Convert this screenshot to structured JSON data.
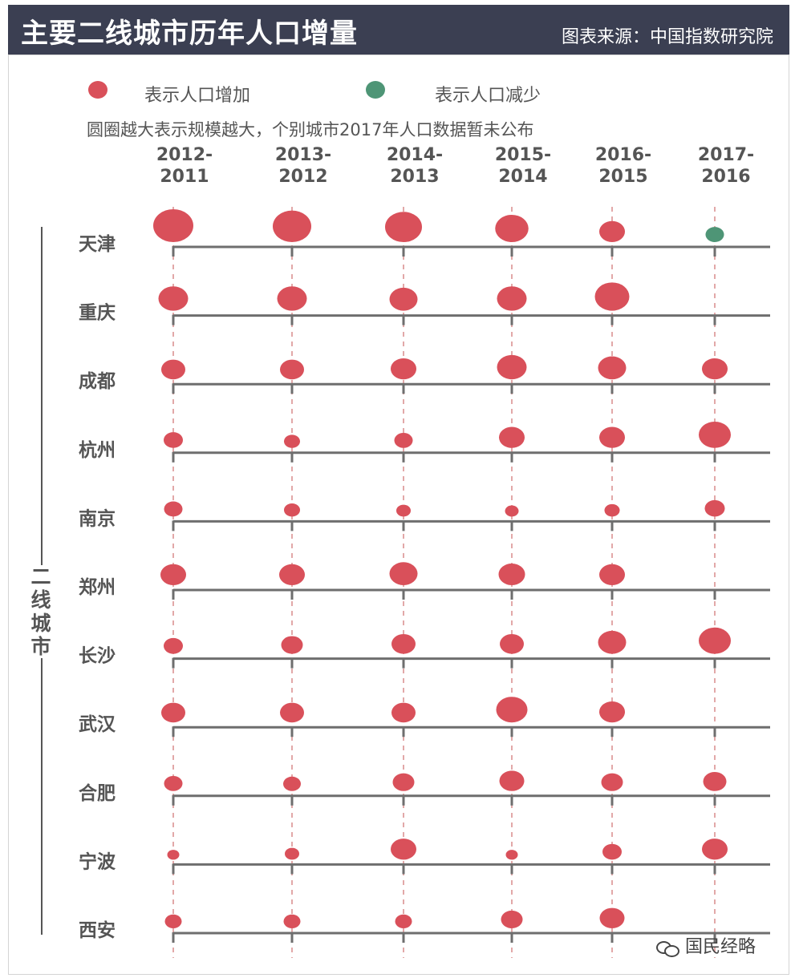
{
  "title": "主要二线城市历年人口增量",
  "source": "图表来源：中国指数研究院",
  "legend": {
    "increase_label": "表示人口增加",
    "decrease_label": "表示人口减少",
    "increase_color": "#d9505a",
    "decrease_color": "#4e9576"
  },
  "note": "圆圈越大表示规模越大，个别城市2017年人口数据暂未公布",
  "group_label": "二线城市",
  "watermark": "国民经略",
  "chart_data": {
    "type": "bubble-matrix",
    "periods": [
      {
        "line1": "2012-",
        "line2": "2011"
      },
      {
        "line1": "2013-",
        "line2": "2012"
      },
      {
        "line1": "2014-",
        "line2": "2013"
      },
      {
        "line1": "2015-",
        "line2": "2014"
      },
      {
        "line1": "2016-",
        "line2": "2015"
      },
      {
        "line1": "2017-",
        "line2": "2016"
      }
    ],
    "size_unit": "relative bubble size (largest = 1.0)",
    "cities": [
      {
        "name": "天津",
        "size": [
          1.0,
          0.96,
          0.92,
          0.83,
          0.64,
          0.46
        ],
        "direction": [
          "increase",
          "increase",
          "increase",
          "increase",
          "increase",
          "decrease"
        ]
      },
      {
        "name": "重庆",
        "size": [
          0.74,
          0.74,
          0.7,
          0.74,
          0.86,
          null
        ],
        "direction": [
          "increase",
          "increase",
          "increase",
          "increase",
          "increase",
          null
        ]
      },
      {
        "name": "成都",
        "size": [
          0.6,
          0.6,
          0.64,
          0.74,
          0.7,
          0.64
        ],
        "direction": [
          "increase",
          "increase",
          "increase",
          "increase",
          "increase",
          "increase"
        ]
      },
      {
        "name": "杭州",
        "size": [
          0.48,
          0.4,
          0.46,
          0.64,
          0.64,
          0.8
        ],
        "direction": [
          "increase",
          "increase",
          "increase",
          "increase",
          "increase",
          "increase"
        ]
      },
      {
        "name": "南京",
        "size": [
          0.46,
          0.4,
          0.36,
          0.34,
          0.38,
          0.5
        ],
        "direction": [
          "increase",
          "increase",
          "increase",
          "increase",
          "increase",
          "increase"
        ]
      },
      {
        "name": "郑州",
        "size": [
          0.64,
          0.64,
          0.7,
          0.66,
          0.64,
          null
        ],
        "direction": [
          "increase",
          "increase",
          "increase",
          "increase",
          "increase",
          null
        ]
      },
      {
        "name": "长沙",
        "size": [
          0.48,
          0.54,
          0.6,
          0.6,
          0.7,
          0.8
        ],
        "direction": [
          "increase",
          "increase",
          "increase",
          "increase",
          "increase",
          "increase"
        ]
      },
      {
        "name": "武汉",
        "size": [
          0.6,
          0.6,
          0.6,
          0.78,
          0.64,
          null
        ],
        "direction": [
          "increase",
          "increase",
          "increase",
          "increase",
          "increase",
          null
        ]
      },
      {
        "name": "合肥",
        "size": [
          0.46,
          0.44,
          0.54,
          0.62,
          0.54,
          0.58
        ],
        "direction": [
          "increase",
          "increase",
          "increase",
          "increase",
          "increase",
          "increase"
        ]
      },
      {
        "name": "宁波",
        "size": [
          0.3,
          0.36,
          0.64,
          0.3,
          0.48,
          0.64
        ],
        "direction": [
          "increase",
          "increase",
          "increase",
          "increase",
          "increase",
          "increase"
        ]
      },
      {
        "name": "西安",
        "size": [
          0.42,
          0.42,
          0.42,
          0.54,
          0.62,
          null
        ],
        "direction": [
          "increase",
          "increase",
          "increase",
          "increase",
          "increase",
          null
        ]
      }
    ]
  }
}
